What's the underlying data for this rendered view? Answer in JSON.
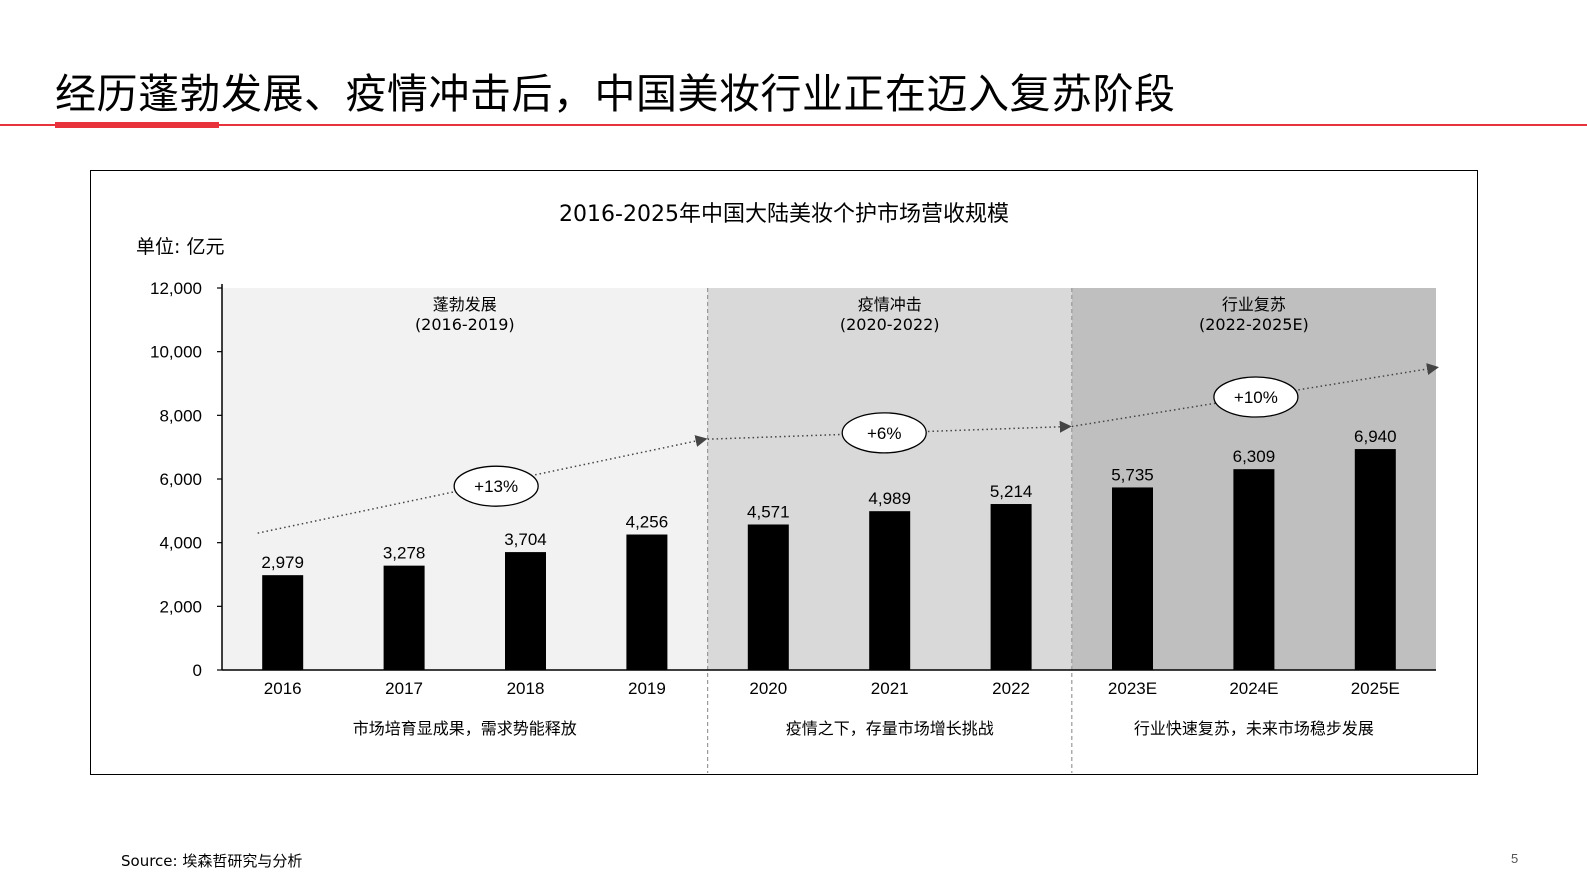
{
  "slide": {
    "title": "经历蓬勃发展、疫情冲击后，中国美妆行业正在迈入复苏阶段",
    "source": "Source: 埃森哲研究与分析",
    "page_number": "5"
  },
  "colors": {
    "accent": "#e8323c",
    "bar": "#000000",
    "phase1_bg": "#f2f2f2",
    "phase2_bg": "#d9d9d9",
    "phase3_bg": "#bfbfbf"
  },
  "chart_data": {
    "type": "bar",
    "title": "2016-2025年中国大陆美妆个护市场营收规模",
    "unit_label": "单位: 亿元",
    "categories": [
      "2016",
      "2017",
      "2018",
      "2019",
      "2020",
      "2021",
      "2022",
      "2023E",
      "2024E",
      "2025E"
    ],
    "values": [
      2979,
      3278,
      3704,
      4256,
      4571,
      4989,
      5214,
      5735,
      6309,
      6940
    ],
    "value_labels": [
      "2,979",
      "3,278",
      "3,704",
      "4,256",
      "4,571",
      "4,989",
      "5,214",
      "5,735",
      "6,309",
      "6,940"
    ],
    "ylim": [
      0,
      12000
    ],
    "yticks": [
      0,
      2000,
      4000,
      6000,
      8000,
      10000,
      12000
    ],
    "ytick_labels": [
      "0",
      "2,000",
      "4,000",
      "6,000",
      "8,000",
      "10,000",
      "12,000"
    ],
    "phases": [
      {
        "name": "蓬勃发展",
        "range": "(2016-2019)",
        "start_index": 0,
        "end_index": 3,
        "description": "市场培育显成果，需求势能释放",
        "growth": "+13%",
        "trend_start": 4300,
        "trend_end": 7250,
        "bg": "#f2f2f2"
      },
      {
        "name": "疫情冲击",
        "range": "(2020-2022)",
        "start_index": 4,
        "end_index": 6,
        "description": "疫情之下，存量市场增长挑战",
        "growth": "+6%",
        "trend_start": 7250,
        "trend_end": 7650,
        "bg": "#d9d9d9"
      },
      {
        "name": "行业复苏",
        "range": "(2022-2025E)",
        "start_index": 7,
        "end_index": 9,
        "description": "行业快速复苏，未来市场稳步发展",
        "growth": "+10%",
        "trend_start": 7650,
        "trend_end": 9500,
        "bg": "#bfbfbf"
      }
    ]
  }
}
